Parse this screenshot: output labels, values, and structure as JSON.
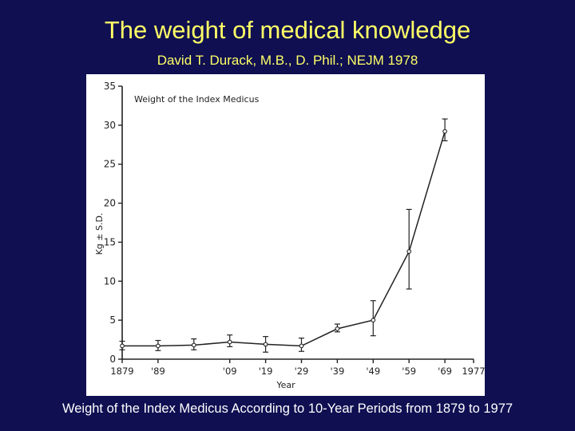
{
  "slide": {
    "title": "The weight of medical knowledge",
    "subtitle": "David T. Durack, M.B., D. Phil.; NEJM 1978",
    "caption": "Weight of the Index Medicus According to 10-Year Periods from 1879 to 1977"
  },
  "colors": {
    "background": "#0f0f52",
    "title": "#ffff66",
    "caption": "#ffffff",
    "plot_ink": "#222222"
  },
  "chart_data": {
    "type": "line",
    "title": "Weight of the Index Medicus",
    "xlabel": "Year",
    "ylabel": "Kg ± S.D.",
    "x_tick_labels": [
      "1879",
      "'89",
      "'09",
      "'19",
      "'29",
      "'39",
      "'49",
      "'59",
      "'69",
      "1977"
    ],
    "x_tick_years": [
      1879,
      1889,
      1909,
      1919,
      1929,
      1939,
      1949,
      1959,
      1969,
      1977
    ],
    "y_ticks": [
      0,
      5,
      10,
      15,
      20,
      25,
      30,
      35
    ],
    "xlim": [
      1879,
      1977
    ],
    "ylim": [
      0,
      35
    ],
    "grid": false,
    "series": [
      {
        "x": [
          1879,
          1889,
          1899,
          1909,
          1919,
          1929,
          1939,
          1949,
          1959,
          1969,
          1977
        ],
        "y": [
          1.7,
          1.7,
          1.8,
          2.2,
          1.9,
          1.7,
          3.9,
          5.0,
          13.8,
          29.2,
          null
        ],
        "y_lower": [
          1.2,
          1.1,
          1.2,
          1.6,
          0.9,
          1.0,
          3.5,
          3.0,
          9.0,
          28.0,
          null
        ],
        "y_upper": [
          2.3,
          2.4,
          2.6,
          3.1,
          2.9,
          2.7,
          4.5,
          7.5,
          19.2,
          30.8,
          null
        ]
      }
    ]
  }
}
